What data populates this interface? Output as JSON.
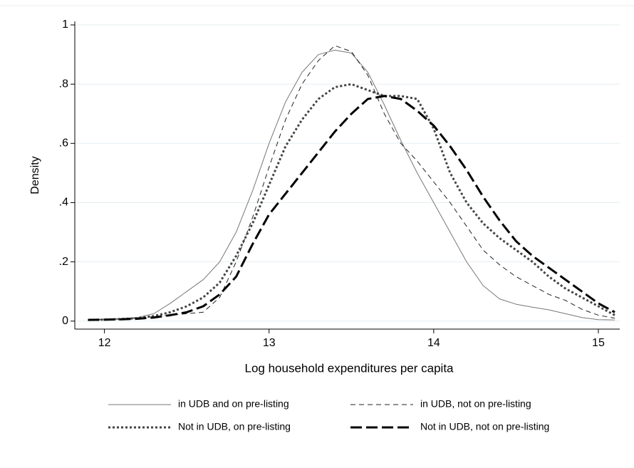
{
  "chart_data": {
    "type": "line",
    "xlabel": "Log household expenditures per capita",
    "ylabel": "Density",
    "x": [
      11.9,
      12.0,
      12.1,
      12.2,
      12.3,
      12.4,
      12.5,
      12.6,
      12.7,
      12.8,
      12.9,
      13.0,
      13.1,
      13.2,
      13.3,
      13.4,
      13.5,
      13.6,
      13.7,
      13.8,
      13.9,
      14.0,
      14.1,
      14.2,
      14.3,
      14.4,
      14.5,
      14.6,
      14.7,
      14.8,
      14.9,
      15.0,
      15.1
    ],
    "series": [
      {
        "name": "in UDB and on pre-listing",
        "color": "#777777",
        "style": "solid",
        "values": [
          0.005,
          0.006,
          0.008,
          0.012,
          0.025,
          0.06,
          0.1,
          0.14,
          0.2,
          0.3,
          0.44,
          0.6,
          0.74,
          0.84,
          0.9,
          0.915,
          0.905,
          0.84,
          0.73,
          0.61,
          0.5,
          0.4,
          0.3,
          0.2,
          0.12,
          0.075,
          0.057,
          0.047,
          0.038,
          0.025,
          0.012,
          0.005,
          0.004
        ]
      },
      {
        "name": "in UDB, not on pre-listing",
        "color": "#222222",
        "style": "dash",
        "values": [
          0.004,
          0.005,
          0.007,
          0.01,
          0.015,
          0.02,
          0.025,
          0.03,
          0.08,
          0.2,
          0.35,
          0.52,
          0.68,
          0.8,
          0.88,
          0.93,
          0.91,
          0.83,
          0.7,
          0.6,
          0.54,
          0.47,
          0.4,
          0.32,
          0.24,
          0.19,
          0.15,
          0.12,
          0.09,
          0.07,
          0.04,
          0.02,
          0.01
        ]
      },
      {
        "name": "Not in UDB, on pre-listing",
        "color": "#444444",
        "style": "dot",
        "values": [
          0.004,
          0.005,
          0.007,
          0.01,
          0.017,
          0.03,
          0.05,
          0.08,
          0.13,
          0.22,
          0.33,
          0.46,
          0.59,
          0.68,
          0.75,
          0.79,
          0.8,
          0.78,
          0.76,
          0.76,
          0.75,
          0.65,
          0.5,
          0.4,
          0.33,
          0.28,
          0.24,
          0.2,
          0.15,
          0.11,
          0.08,
          0.05,
          0.02
        ]
      },
      {
        "name": "Not in UDB, not on pre-listing",
        "color": "#000000",
        "style": "longdash",
        "values": [
          0.004,
          0.005,
          0.006,
          0.008,
          0.012,
          0.02,
          0.03,
          0.05,
          0.09,
          0.15,
          0.26,
          0.36,
          0.43,
          0.5,
          0.57,
          0.64,
          0.7,
          0.75,
          0.76,
          0.75,
          0.71,
          0.66,
          0.59,
          0.51,
          0.42,
          0.34,
          0.27,
          0.22,
          0.18,
          0.14,
          0.1,
          0.06,
          0.03
        ]
      }
    ],
    "xlim": [
      11.82,
      15.13
    ],
    "xticks": [
      12,
      13,
      14,
      15
    ],
    "ylim": [
      -0.027,
      1.012
    ],
    "yticks": [
      0,
      {
        "value": 0.2,
        "label": ".2"
      },
      {
        "value": 0.4,
        "label": ".4"
      },
      {
        "value": 0.6,
        "label": ".6"
      },
      {
        "value": 0.8,
        "label": ".8"
      },
      1
    ],
    "grid": true
  }
}
